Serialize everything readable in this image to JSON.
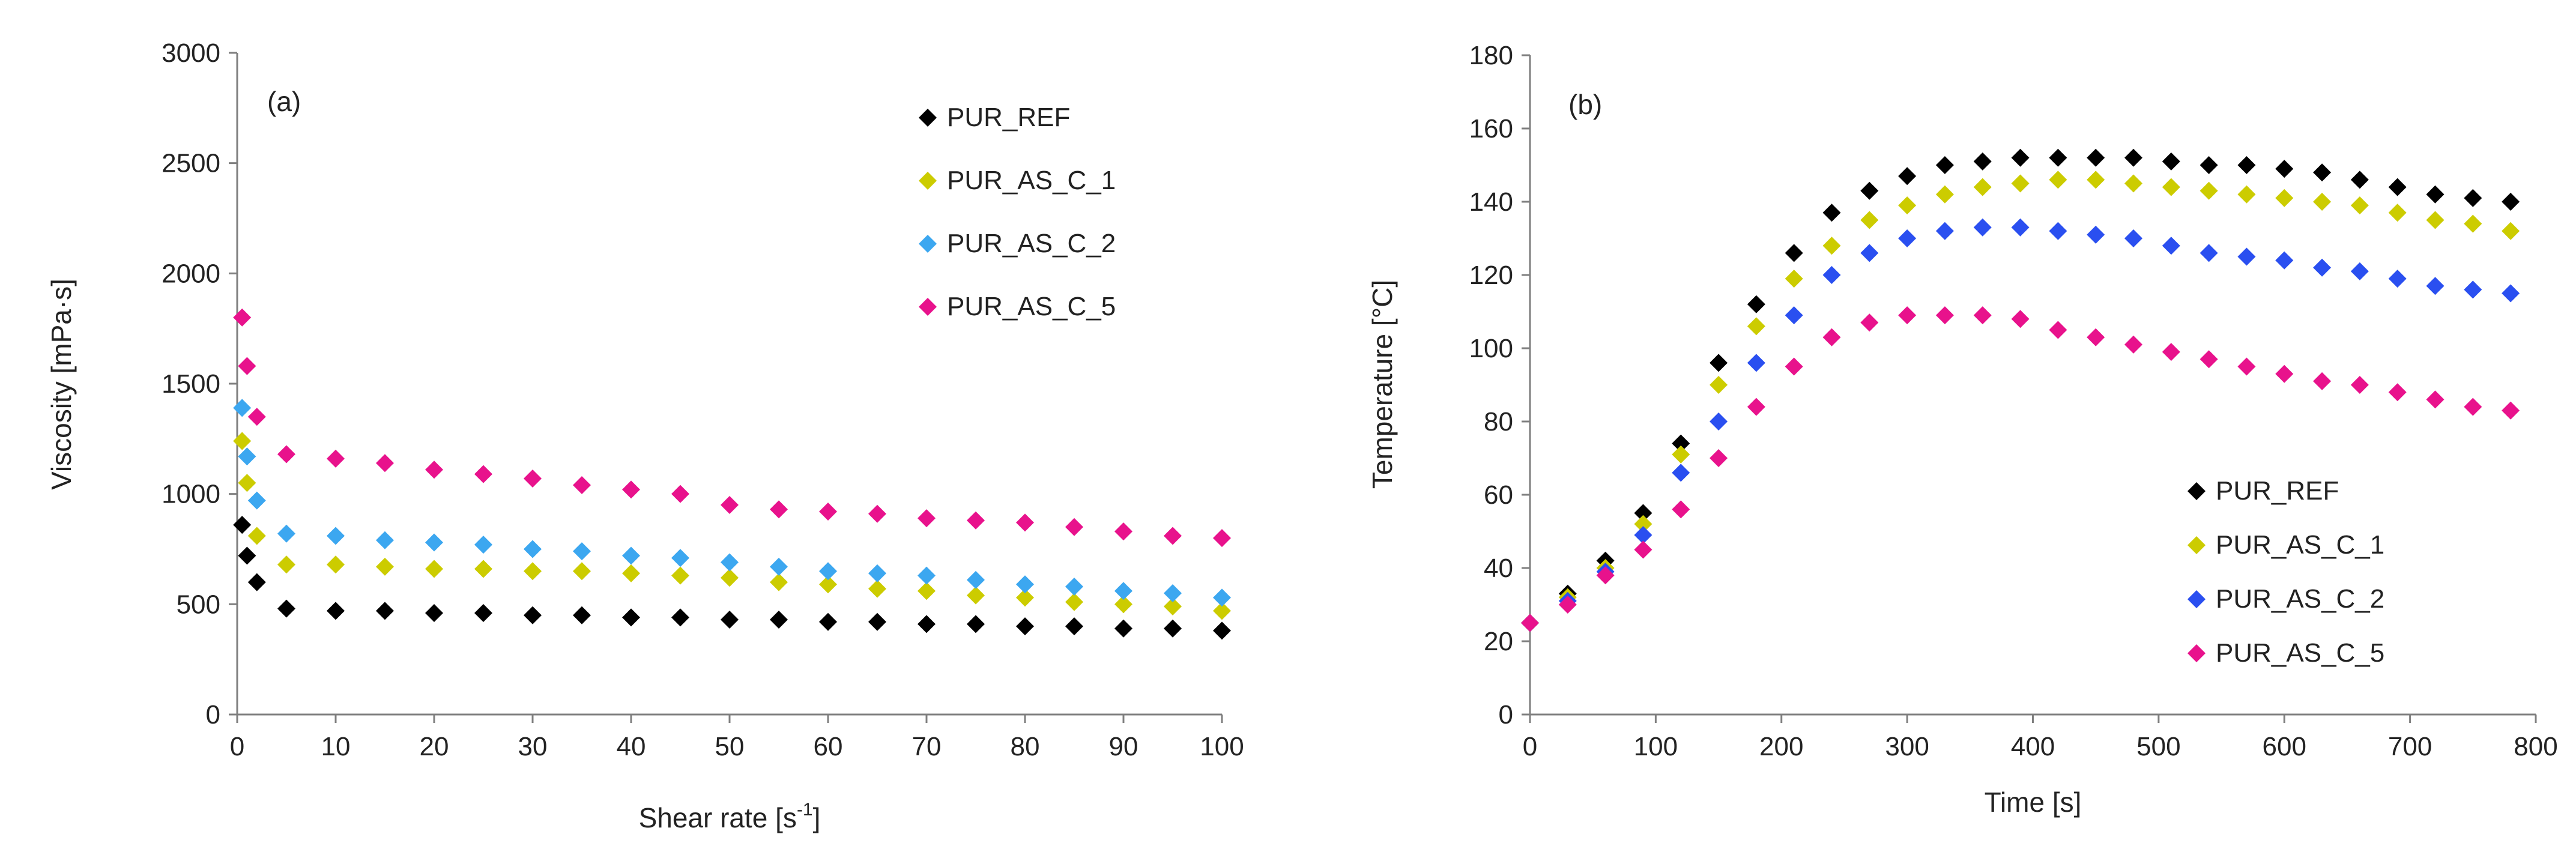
{
  "chart_data": [
    {
      "type": "scatter",
      "panel_label": "(a)",
      "xlabel_main": "Shear rate [s",
      "xlabel_sup": "-1",
      "xlabel_end": "]",
      "ylabel": "Viscosity [mPa·s]",
      "xlim": [
        0,
        100
      ],
      "ylim": [
        0,
        3000
      ],
      "xticks": [
        0,
        10,
        20,
        30,
        40,
        50,
        60,
        70,
        80,
        90,
        100
      ],
      "yticks": [
        0,
        500,
        1000,
        1500,
        2000,
        2500,
        3000
      ],
      "legend_position": "top-right",
      "series": [
        {
          "name": "PUR_REF",
          "color": "#000000",
          "points": [
            [
              0.5,
              860
            ],
            [
              1,
              720
            ],
            [
              2,
              600
            ],
            [
              5,
              480
            ],
            [
              10,
              470
            ],
            [
              15,
              470
            ],
            [
              20,
              460
            ],
            [
              25,
              460
            ],
            [
              30,
              450
            ],
            [
              35,
              450
            ],
            [
              40,
              440
            ],
            [
              45,
              440
            ],
            [
              50,
              430
            ],
            [
              55,
              430
            ],
            [
              60,
              420
            ],
            [
              65,
              420
            ],
            [
              70,
              410
            ],
            [
              75,
              410
            ],
            [
              80,
              400
            ],
            [
              85,
              400
            ],
            [
              90,
              390
            ],
            [
              95,
              390
            ],
            [
              100,
              380
            ]
          ]
        },
        {
          "name": "PUR_AS_C_1",
          "color": "#cccc00",
          "points": [
            [
              0.5,
              1240
            ],
            [
              1,
              1050
            ],
            [
              2,
              810
            ],
            [
              5,
              680
            ],
            [
              10,
              680
            ],
            [
              15,
              670
            ],
            [
              20,
              660
            ],
            [
              25,
              660
            ],
            [
              30,
              650
            ],
            [
              35,
              650
            ],
            [
              40,
              640
            ],
            [
              45,
              630
            ],
            [
              50,
              620
            ],
            [
              55,
              600
            ],
            [
              60,
              590
            ],
            [
              65,
              570
            ],
            [
              70,
              560
            ],
            [
              75,
              540
            ],
            [
              80,
              530
            ],
            [
              85,
              510
            ],
            [
              90,
              500
            ],
            [
              95,
              490
            ],
            [
              100,
              470
            ]
          ]
        },
        {
          "name": "PUR_AS_C_2",
          "color": "#3ca7f0",
          "points": [
            [
              0.5,
              1390
            ],
            [
              1,
              1170
            ],
            [
              2,
              970
            ],
            [
              5,
              820
            ],
            [
              10,
              810
            ],
            [
              15,
              790
            ],
            [
              20,
              780
            ],
            [
              25,
              770
            ],
            [
              30,
              750
            ],
            [
              35,
              740
            ],
            [
              40,
              720
            ],
            [
              45,
              710
            ],
            [
              50,
              690
            ],
            [
              55,
              670
            ],
            [
              60,
              650
            ],
            [
              65,
              640
            ],
            [
              70,
              630
            ],
            [
              75,
              610
            ],
            [
              80,
              590
            ],
            [
              85,
              580
            ],
            [
              90,
              560
            ],
            [
              95,
              550
            ],
            [
              100,
              530
            ]
          ]
        },
        {
          "name": "PUR_AS_C_5",
          "color": "#e8128c",
          "points": [
            [
              0.5,
              1800
            ],
            [
              1,
              1580
            ],
            [
              2,
              1350
            ],
            [
              5,
              1180
            ],
            [
              10,
              1160
            ],
            [
              15,
              1140
            ],
            [
              20,
              1110
            ],
            [
              25,
              1090
            ],
            [
              30,
              1070
            ],
            [
              35,
              1040
            ],
            [
              40,
              1020
            ],
            [
              45,
              1000
            ],
            [
              50,
              950
            ],
            [
              55,
              930
            ],
            [
              60,
              920
            ],
            [
              65,
              910
            ],
            [
              70,
              890
            ],
            [
              75,
              880
            ],
            [
              80,
              870
            ],
            [
              85,
              850
            ],
            [
              90,
              830
            ],
            [
              95,
              810
            ],
            [
              100,
              800
            ]
          ]
        }
      ]
    },
    {
      "type": "scatter",
      "panel_label": "(b)",
      "xlabel": "Time [s]",
      "ylabel": "Temperature [°C]",
      "xlim": [
        0,
        800
      ],
      "ylim": [
        0,
        180
      ],
      "xticks": [
        0,
        100,
        200,
        300,
        400,
        500,
        600,
        700,
        800
      ],
      "yticks": [
        0,
        20,
        40,
        60,
        80,
        100,
        120,
        140,
        160,
        180
      ],
      "legend_position": "bottom-right",
      "series": [
        {
          "name": "PUR_REF",
          "color": "#000000",
          "points": [
            [
              0,
              25
            ],
            [
              30,
              33
            ],
            [
              60,
              42
            ],
            [
              90,
              55
            ],
            [
              120,
              74
            ],
            [
              150,
              96
            ],
            [
              180,
              112
            ],
            [
              210,
              126
            ],
            [
              240,
              137
            ],
            [
              270,
              143
            ],
            [
              300,
              147
            ],
            [
              330,
              150
            ],
            [
              360,
              151
            ],
            [
              390,
              152
            ],
            [
              420,
              152
            ],
            [
              450,
              152
            ],
            [
              480,
              152
            ],
            [
              510,
              151
            ],
            [
              540,
              150
            ],
            [
              570,
              150
            ],
            [
              600,
              149
            ],
            [
              630,
              148
            ],
            [
              660,
              146
            ],
            [
              690,
              144
            ],
            [
              720,
              142
            ],
            [
              750,
              141
            ],
            [
              780,
              140
            ]
          ]
        },
        {
          "name": "PUR_AS_C_1",
          "color": "#cccc00",
          "points": [
            [
              0,
              25
            ],
            [
              30,
              32
            ],
            [
              60,
              40
            ],
            [
              90,
              52
            ],
            [
              120,
              71
            ],
            [
              150,
              90
            ],
            [
              180,
              106
            ],
            [
              210,
              119
            ],
            [
              240,
              128
            ],
            [
              270,
              135
            ],
            [
              300,
              139
            ],
            [
              330,
              142
            ],
            [
              360,
              144
            ],
            [
              390,
              145
            ],
            [
              420,
              146
            ],
            [
              450,
              146
            ],
            [
              480,
              145
            ],
            [
              510,
              144
            ],
            [
              540,
              143
            ],
            [
              570,
              142
            ],
            [
              600,
              141
            ],
            [
              630,
              140
            ],
            [
              660,
              139
            ],
            [
              690,
              137
            ],
            [
              720,
              135
            ],
            [
              750,
              134
            ],
            [
              780,
              132
            ]
          ]
        },
        {
          "name": "PUR_AS_C_2",
          "color": "#2a4ff0",
          "points": [
            [
              0,
              25
            ],
            [
              30,
              31
            ],
            [
              60,
              39
            ],
            [
              90,
              49
            ],
            [
              120,
              66
            ],
            [
              150,
              80
            ],
            [
              180,
              96
            ],
            [
              210,
              109
            ],
            [
              240,
              120
            ],
            [
              270,
              126
            ],
            [
              300,
              130
            ],
            [
              330,
              132
            ],
            [
              360,
              133
            ],
            [
              390,
              133
            ],
            [
              420,
              132
            ],
            [
              450,
              131
            ],
            [
              480,
              130
            ],
            [
              510,
              128
            ],
            [
              540,
              126
            ],
            [
              570,
              125
            ],
            [
              600,
              124
            ],
            [
              630,
              122
            ],
            [
              660,
              121
            ],
            [
              690,
              119
            ],
            [
              720,
              117
            ],
            [
              750,
              116
            ],
            [
              780,
              115
            ]
          ]
        },
        {
          "name": "PUR_AS_C_5",
          "color": "#e8128c",
          "points": [
            [
              0,
              25
            ],
            [
              30,
              30
            ],
            [
              60,
              38
            ],
            [
              90,
              45
            ],
            [
              120,
              56
            ],
            [
              150,
              70
            ],
            [
              180,
              84
            ],
            [
              210,
              95
            ],
            [
              240,
              103
            ],
            [
              270,
              107
            ],
            [
              300,
              109
            ],
            [
              330,
              109
            ],
            [
              360,
              109
            ],
            [
              390,
              108
            ],
            [
              420,
              105
            ],
            [
              450,
              103
            ],
            [
              480,
              101
            ],
            [
              510,
              99
            ],
            [
              540,
              97
            ],
            [
              570,
              95
            ],
            [
              600,
              93
            ],
            [
              630,
              91
            ],
            [
              660,
              90
            ],
            [
              690,
              88
            ],
            [
              720,
              86
            ],
            [
              750,
              84
            ],
            [
              780,
              83
            ]
          ]
        }
      ]
    }
  ]
}
